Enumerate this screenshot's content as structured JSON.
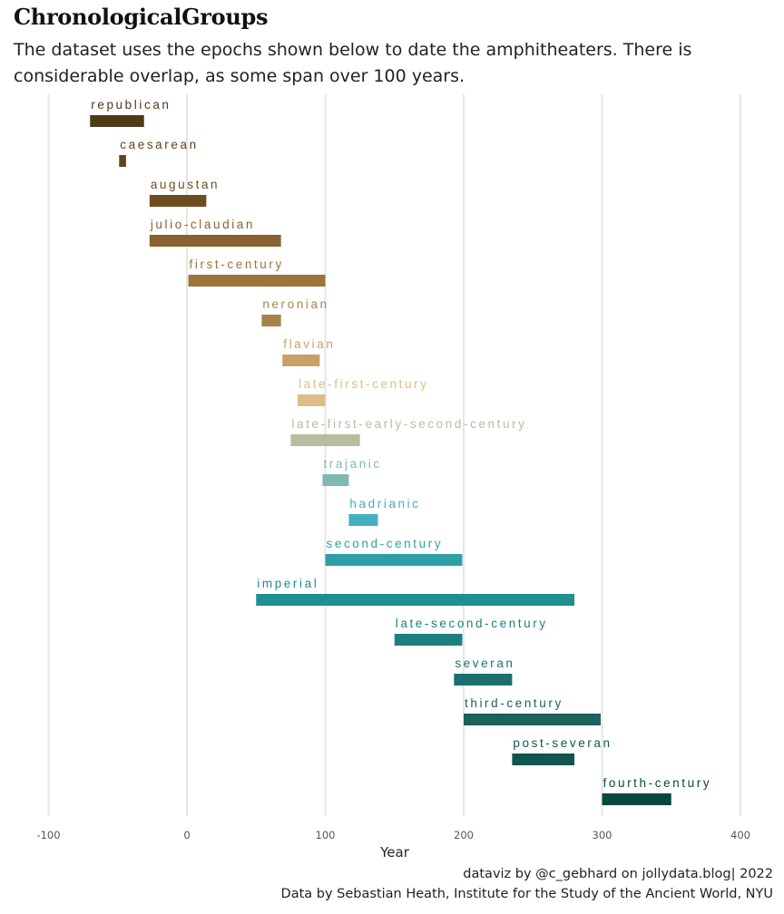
{
  "title": "ChronologicalGroups",
  "subtitle": "The dataset uses the epochs shown below to date the amphitheaters. There is considerable overlap, as some span over 100 years.",
  "footer": {
    "line1": "dataviz by @c_gebhard on jollydata.blog|  2022",
    "line2": "Data by Sebastian Heath, Institute for the Study of the Ancient World, NYU"
  },
  "chart_data": {
    "type": "bar",
    "orientation": "horizontal-range",
    "title": "ChronologicalGroups",
    "xlabel": "Year",
    "ylabel": "",
    "xlim": [
      -110,
      420
    ],
    "xticks": [
      -100,
      0,
      100,
      200,
      300,
      400
    ],
    "xtick_labels": [
      "-100",
      "0",
      "100",
      "200",
      "300",
      "400"
    ],
    "grid": true,
    "series": [
      {
        "name": "republican",
        "start": -70,
        "end": -31,
        "color": "#4f3a16"
      },
      {
        "name": "caesarean",
        "start": -49,
        "end": -44,
        "color": "#5e4419"
      },
      {
        "name": "augustan",
        "start": -27,
        "end": 14,
        "color": "#6c4e1e"
      },
      {
        "name": "julio-claudian",
        "start": -27,
        "end": 68,
        "color": "#8a6130"
      },
      {
        "name": "first-century",
        "start": 1,
        "end": 100,
        "color": "#9d743c"
      },
      {
        "name": "neronian",
        "start": 54,
        "end": 68,
        "color": "#a9824a"
      },
      {
        "name": "flavian",
        "start": 69,
        "end": 96,
        "color": "#c8a068"
      },
      {
        "name": "late-first-century",
        "start": 80,
        "end": 100,
        "color": "#dfbd85"
      },
      {
        "name": "late-first-early-second-century",
        "start": 75,
        "end": 125,
        "color": "#b7bd9d"
      },
      {
        "name": "trajanic",
        "start": 98,
        "end": 117,
        "color": "#80b9b2"
      },
      {
        "name": "hadrianic",
        "start": 117,
        "end": 138,
        "color": "#44aec0"
      },
      {
        "name": "second-century",
        "start": 100,
        "end": 199,
        "color": "#2e9faa"
      },
      {
        "name": "imperial",
        "start": 50,
        "end": 280,
        "color": "#1f8f91"
      },
      {
        "name": "late-second-century",
        "start": 150,
        "end": 199,
        "color": "#1e7f7f"
      },
      {
        "name": "severan",
        "start": 193,
        "end": 235,
        "color": "#1c6f6e"
      },
      {
        "name": "third-century",
        "start": 200,
        "end": 299,
        "color": "#1b615c"
      },
      {
        "name": "post-severan",
        "start": 235,
        "end": 280,
        "color": "#12554f"
      },
      {
        "name": "fourth-century",
        "start": 300,
        "end": 350,
        "color": "#0a4640"
      }
    ]
  }
}
